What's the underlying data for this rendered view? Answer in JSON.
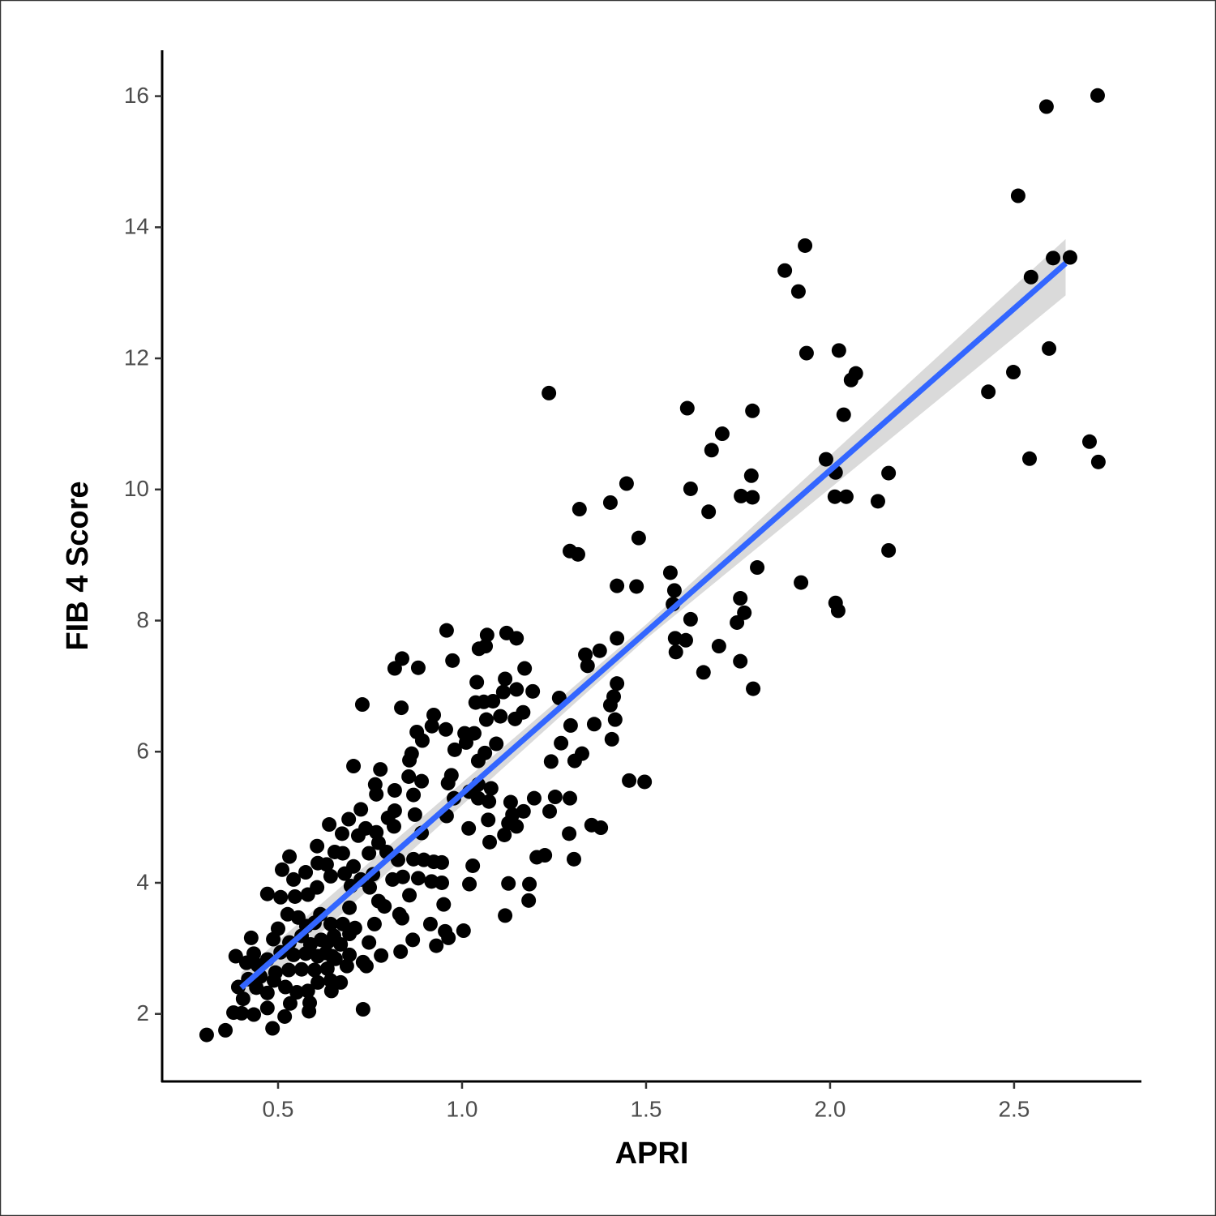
{
  "chart_data": {
    "type": "scatter",
    "x_label": "APRI",
    "y_label": "FIB 4 Score",
    "color": "#000000",
    "xlim": [
      0.185,
      2.846
    ],
    "ylim": [
      0.97,
      16.7
    ],
    "xticks": [
      0.5,
      {
        "value": 1,
        "label": "1.0"
      },
      1.5,
      {
        "value": 2,
        "label": "2.0"
      },
      2.5
    ],
    "yticks": [
      2,
      4,
      6,
      8,
      10,
      12,
      14,
      16
    ],
    "x": [
      2.727,
      2.588,
      2.511,
      2.546,
      2.606,
      2.652,
      2.595,
      2.498,
      2.43,
      2.542,
      2.705,
      2.729,
      1.932,
      1.877,
      1.914,
      1.936,
      2.024,
      2.07,
      2.057,
      2.037,
      1.989,
      2.015,
      2.013,
      2.044,
      2.159,
      2.13,
      2.159,
      1.921,
      2.015,
      2.022,
      1.236,
      1.612,
      1.789,
      1.707,
      1.678,
      1.786,
      1.621,
      1.758,
      1.789,
      1.67,
      1.447,
      1.403,
      1.319,
      1.48,
      1.293,
      1.315,
      1.802,
      1.566,
      1.577,
      1.421,
      1.474,
      1.756,
      1.573,
      1.767,
      1.621,
      1.747,
      1.579,
      1.608,
      1.698,
      1.581,
      1.421,
      1.374,
      1.335,
      1.341,
      1.656,
      1.756,
      1.791,
      1.421,
      1.412,
      1.403,
      1.416,
      1.407,
      1.454,
      1.496,
      1.377,
      1.352,
      1.304,
      1.291,
      1.359,
      1.264,
      1.326,
      1.306,
      1.295,
      1.242,
      1.269,
      1.253,
      1.293,
      1.238,
      1.225,
      1.203,
      1.181,
      1.183,
      1.117,
      1.126,
      1.196,
      1.192,
      1.17,
      1.148,
      1.121,
      1.068,
      1.046,
      1.064,
      1.04,
      1.117,
      1.148,
      1.112,
      1.084,
      1.059,
      1.037,
      1.066,
      1.104,
      1.166,
      1.144,
      1.033,
      1.007,
      1.093,
      1.062,
      1.044,
      1.011,
      0.98,
      0.956,
      0.918,
      0.923,
      0.958,
      0.974,
      0.881,
      0.837,
      0.817,
      0.835,
      0.729,
      0.705,
      0.778,
      0.877,
      0.892,
      0.863,
      0.857,
      0.89,
      0.855,
      0.971,
      0.962,
      0.817,
      0.764,
      0.767,
      0.868,
      0.872,
      0.89,
      0.958,
      0.978,
      1.02,
      1.044,
      1.079,
      1.073,
      1.044,
      1.132,
      1.137,
      1.167,
      1.126,
      1.148,
      1.115,
      1.071,
      1.018,
      1.075,
      1.029,
      1.02,
      1.004,
      0.954,
      0.963,
      0.93,
      0.95,
      0.917,
      0.914,
      0.945,
      0.923,
      0.896,
      0.868,
      0.945,
      0.839,
      0.811,
      0.789,
      0.837,
      0.866,
      0.833,
      0.78,
      0.747,
      0.762,
      0.731,
      0.731,
      0.74,
      0.694,
      0.67,
      0.709,
      0.694,
      0.698,
      0.681,
      0.643,
      0.606,
      0.581,
      0.546,
      0.507,
      0.471,
      0.542,
      0.575,
      0.608,
      0.632,
      0.606,
      0.639,
      0.511,
      0.531,
      0.674,
      0.692,
      0.725,
      0.738,
      0.767,
      0.718,
      0.773,
      0.799,
      0.817,
      0.795,
      0.815,
      0.747,
      0.654,
      0.676,
      0.705,
      0.725,
      0.749,
      0.758,
      0.826,
      0.881,
      0.857,
      0.83,
      0.773,
      0.526,
      0.555,
      0.577,
      0.599,
      0.615,
      0.643,
      0.676,
      0.694,
      0.652,
      0.617,
      0.588,
      0.564,
      0.531,
      0.5,
      0.487,
      0.427,
      0.434,
      0.385,
      0.414,
      0.445,
      0.471,
      0.507,
      0.542,
      0.575,
      0.608,
      0.63,
      0.656,
      0.687,
      0.634,
      0.599,
      0.564,
      0.529,
      0.493,
      0.452,
      0.419,
      0.392,
      0.405,
      0.441,
      0.471,
      0.489,
      0.52,
      0.551,
      0.581,
      0.608,
      0.643,
      0.67,
      0.645,
      0.586,
      0.584,
      0.533,
      0.518,
      0.471,
      0.434,
      0.379,
      0.401,
      0.357,
      0.306,
      0.485,
      0.634,
      0.647
    ],
    "y": [
      16.01,
      15.84,
      14.48,
      13.24,
      13.53,
      13.54,
      12.15,
      11.79,
      11.49,
      10.47,
      10.73,
      10.42,
      13.72,
      13.34,
      13.02,
      12.08,
      12.12,
      11.77,
      11.67,
      11.14,
      10.46,
      10.26,
      9.89,
      9.89,
      10.25,
      9.82,
      9.07,
      8.58,
      8.27,
      8.15,
      11.47,
      11.24,
      11.2,
      10.85,
      10.6,
      10.21,
      10.01,
      9.9,
      9.88,
      9.66,
      10.09,
      9.8,
      9.7,
      9.26,
      9.06,
      9.01,
      8.81,
      8.73,
      8.46,
      8.53,
      8.52,
      8.34,
      8.25,
      8.12,
      8.02,
      7.97,
      7.73,
      7.7,
      7.61,
      7.52,
      7.73,
      7.54,
      7.48,
      7.31,
      7.21,
      7.38,
      6.96,
      7.04,
      6.84,
      6.71,
      6.49,
      6.19,
      5.56,
      5.54,
      4.84,
      4.88,
      4.36,
      4.75,
      6.42,
      6.82,
      5.97,
      5.86,
      6.4,
      5.85,
      6.13,
      5.31,
      5.29,
      5.09,
      4.42,
      4.39,
      3.73,
      3.98,
      3.5,
      3.99,
      5.29,
      6.92,
      7.27,
      7.73,
      7.81,
      7.78,
      7.57,
      7.61,
      7.06,
      7.11,
      6.95,
      6.91,
      6.77,
      6.76,
      6.75,
      6.49,
      6.54,
      6.6,
      6.5,
      6.28,
      6.28,
      6.12,
      5.98,
      5.86,
      6.14,
      6.03,
      6.34,
      6.39,
      6.56,
      7.85,
      7.39,
      7.28,
      7.42,
      7.27,
      6.67,
      6.72,
      5.78,
      5.73,
      6.3,
      6.17,
      5.97,
      5.87,
      5.55,
      5.62,
      5.64,
      5.52,
      5.41,
      5.5,
      5.35,
      5.34,
      5.04,
      4.76,
      5.02,
      5.29,
      5.39,
      5.5,
      5.44,
      5.24,
      5.29,
      5.23,
      5.04,
      5.09,
      4.91,
      4.86,
      4.73,
      4.96,
      4.83,
      4.62,
      4.26,
      3.98,
      3.27,
      3.26,
      3.16,
      3.04,
      3.67,
      4.02,
      3.37,
      4.0,
      4.32,
      4.35,
      4.36,
      4.31,
      4.09,
      4.05,
      3.64,
      3.46,
      3.13,
      2.95,
      2.89,
      3.09,
      3.37,
      2.79,
      2.07,
      2.73,
      2.9,
      3.06,
      3.31,
      3.62,
      3.95,
      4.14,
      4.1,
      3.93,
      3.82,
      3.79,
      3.78,
      3.83,
      4.05,
      4.16,
      4.3,
      4.28,
      4.56,
      4.89,
      4.2,
      4.4,
      4.75,
      4.97,
      5.12,
      4.83,
      4.77,
      4.72,
      4.61,
      4.99,
      5.1,
      4.47,
      4.86,
      4.45,
      4.47,
      4.45,
      4.25,
      4.05,
      3.93,
      4.13,
      4.35,
      4.07,
      3.81,
      3.52,
      3.72,
      3.52,
      3.47,
      3.34,
      3.39,
      3.52,
      3.37,
      3.37,
      3.22,
      3.19,
      3.13,
      3.06,
      3.19,
      3.09,
      3.3,
      3.14,
      3.16,
      2.92,
      2.88,
      2.78,
      2.74,
      2.83,
      2.94,
      2.9,
      2.92,
      2.88,
      2.93,
      2.84,
      2.73,
      2.69,
      2.67,
      2.68,
      2.67,
      2.63,
      2.57,
      2.53,
      2.41,
      2.23,
      2.4,
      2.32,
      2.51,
      2.41,
      2.33,
      2.35,
      2.48,
      2.51,
      2.48,
      2.35,
      2.17,
      2.04,
      2.16,
      1.96,
      2.09,
      1.99,
      2.02,
      2.01,
      1.75,
      1.68,
      1.78,
      3.09,
      2.88
    ],
    "fit": {
      "color": "#3366ff",
      "x": [
        0.4,
        2.64
      ],
      "y": [
        2.4,
        13.45
      ]
    },
    "band": {
      "color": "#d3d3d3",
      "x": [
        0.4,
        1.5,
        2.64
      ],
      "lower": [
        2.14,
        7.72,
        12.96
      ],
      "upper": [
        2.63,
        7.94,
        13.82
      ]
    }
  }
}
